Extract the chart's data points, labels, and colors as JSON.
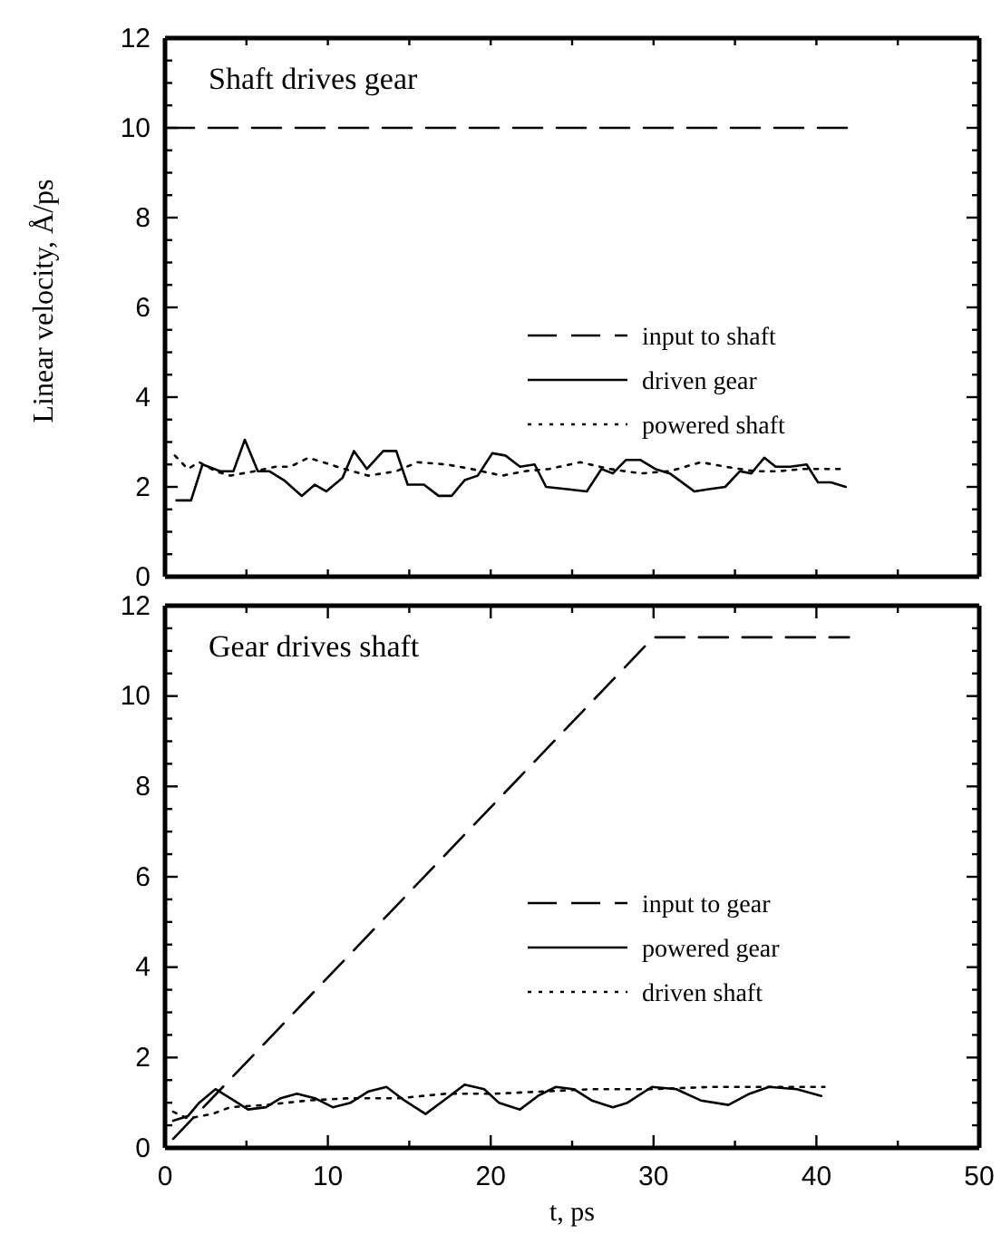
{
  "chart_data": [
    {
      "type": "line",
      "title": "Shaft drives gear",
      "ylabel": "Linear velocity, Å/ps",
      "xlim": [
        0,
        50
      ],
      "ylim": [
        0,
        12
      ],
      "xticks": [
        {
          "value": 0,
          "label": null
        },
        {
          "value": 5,
          "label": null
        },
        {
          "value": 10,
          "label": null
        },
        {
          "value": 15,
          "label": null
        },
        {
          "value": 20,
          "label": null
        },
        {
          "value": 25,
          "label": null
        },
        {
          "value": 30,
          "label": null
        },
        {
          "value": 35,
          "label": null
        },
        {
          "value": 40,
          "label": null
        },
        {
          "value": 45,
          "label": null
        },
        {
          "value": 50,
          "label": null
        }
      ],
      "yticks": [
        0,
        {
          "value": 0.5,
          "label": null
        },
        {
          "value": 1,
          "label": null
        },
        {
          "value": 1.5,
          "label": null
        },
        2,
        {
          "value": 2.5,
          "label": null
        },
        {
          "value": 3,
          "label": null
        },
        {
          "value": 3.5,
          "label": null
        },
        4,
        {
          "value": 4.5,
          "label": null
        },
        {
          "value": 5,
          "label": null
        },
        {
          "value": 5.5,
          "label": null
        },
        6,
        {
          "value": 6.5,
          "label": null
        },
        {
          "value": 7,
          "label": null
        },
        {
          "value": 7.5,
          "label": null
        },
        8,
        {
          "value": 8.5,
          "label": null
        },
        {
          "value": 9,
          "label": null
        },
        {
          "value": 9.5,
          "label": null
        },
        10,
        {
          "value": 10.5,
          "label": null
        },
        {
          "value": 11,
          "label": null
        },
        {
          "value": 11.5,
          "label": null
        },
        12
      ],
      "tick_labels": "y",
      "legend": "right",
      "grid": false,
      "marker": "none",
      "series": [
        {
          "name": "input to shaft",
          "color": "#000000",
          "line_style": "dashed",
          "x": [
            0,
            42
          ],
          "values": [
            10,
            10
          ]
        },
        {
          "name": "driven gear",
          "color": "#000000",
          "line_style": "solid",
          "x": [
            0.7,
            1.6,
            2.3,
            3.4,
            4.2,
            4.9,
            5.7,
            6.4,
            7.3,
            8.4,
            9.2,
            9.9,
            10.9,
            11.6,
            12.4,
            13.4,
            14.2,
            14.9,
            15.9,
            16.8,
            17.6,
            18.4,
            19.2,
            20.1,
            20.9,
            21.8,
            22.7,
            23.4,
            24.7,
            25.9,
            26.8,
            27.5,
            28.3,
            29.2,
            30.1,
            31,
            32.5,
            33.4,
            34.4,
            35.3,
            36,
            36.8,
            37.5,
            38.4,
            39.4,
            40.1,
            40.9,
            41.8
          ],
          "values": [
            1.7,
            1.7,
            2.5,
            2.35,
            2.35,
            3.05,
            2.35,
            2.35,
            2.15,
            1.8,
            2.05,
            1.9,
            2.2,
            2.8,
            2.4,
            2.8,
            2.8,
            2.05,
            2.05,
            1.8,
            1.8,
            2.15,
            2.25,
            2.75,
            2.7,
            2.45,
            2.5,
            2,
            1.95,
            1.9,
            2.4,
            2.3,
            2.6,
            2.6,
            2.4,
            2.3,
            1.9,
            1.95,
            2,
            2.35,
            2.3,
            2.65,
            2.45,
            2.45,
            2.5,
            2.1,
            2.1,
            2
          ]
        },
        {
          "name": "powered shaft",
          "color": "#000000",
          "line_style": "dotted",
          "x": [
            0.6,
            1.4,
            2.1,
            3.1,
            4,
            5.5,
            6.8,
            7.7,
            8.8,
            9.7,
            11,
            12.5,
            14.2,
            15.5,
            17.3,
            18.8,
            20.7,
            22.1,
            23.6,
            25.5,
            27.3,
            29.2,
            31,
            32.9,
            34.4,
            36.2,
            37.7,
            39.2,
            41.8
          ],
          "values": [
            2.7,
            2.4,
            2.55,
            2.35,
            2.25,
            2.35,
            2.45,
            2.45,
            2.65,
            2.55,
            2.4,
            2.25,
            2.35,
            2.55,
            2.5,
            2.4,
            2.25,
            2.35,
            2.4,
            2.55,
            2.4,
            2.3,
            2.35,
            2.55,
            2.45,
            2.35,
            2.35,
            2.4,
            2.4
          ]
        }
      ]
    },
    {
      "type": "line",
      "title": "Gear drives shaft",
      "xlabel": "t, ps",
      "xlim": [
        0,
        50
      ],
      "ylim": [
        0,
        12
      ],
      "xticks": [
        0,
        {
          "value": 5,
          "label": null
        },
        10,
        {
          "value": 15,
          "label": null
        },
        20,
        {
          "value": 25,
          "label": null
        },
        30,
        {
          "value": 35,
          "label": null
        },
        40,
        {
          "value": 45,
          "label": null
        },
        50
      ],
      "yticks": [
        0,
        {
          "value": 0.5,
          "label": null
        },
        {
          "value": 1,
          "label": null
        },
        {
          "value": 1.5,
          "label": null
        },
        2,
        {
          "value": 2.5,
          "label": null
        },
        {
          "value": 3,
          "label": null
        },
        {
          "value": 3.5,
          "label": null
        },
        4,
        {
          "value": 4.5,
          "label": null
        },
        {
          "value": 5,
          "label": null
        },
        {
          "value": 5.5,
          "label": null
        },
        6,
        {
          "value": 6.5,
          "label": null
        },
        {
          "value": 7,
          "label": null
        },
        {
          "value": 7.5,
          "label": null
        },
        8,
        {
          "value": 8.5,
          "label": null
        },
        {
          "value": 9,
          "label": null
        },
        {
          "value": 9.5,
          "label": null
        },
        10,
        {
          "value": 10.5,
          "label": null
        },
        {
          "value": 11,
          "label": null
        },
        {
          "value": 11.5,
          "label": null
        },
        12
      ],
      "legend": "right",
      "grid": false,
      "marker": "none",
      "series": [
        {
          "name": "input to gear",
          "color": "#000000",
          "line_style": "dashed",
          "x": [
            0.5,
            30,
            42
          ],
          "values": [
            0.2,
            11.3,
            11.3
          ]
        },
        {
          "name": "powered gear",
          "color": "#000000",
          "line_style": "solid",
          "x": [
            0.5,
            1.4,
            2.1,
            3.1,
            4,
            5.1,
            6.2,
            7.1,
            8.1,
            9.2,
            10.3,
            11.4,
            12.5,
            13.6,
            14.7,
            16,
            17.3,
            18.4,
            19.6,
            20.5,
            21.8,
            22.9,
            24,
            25.1,
            26.2,
            27.5,
            28.4,
            29.9,
            31.4,
            32.9,
            34.6,
            35.9,
            37.1,
            38.8,
            40.3
          ],
          "values": [
            0.6,
            0.7,
            1,
            1.3,
            1.1,
            0.85,
            0.9,
            1.1,
            1.2,
            1.1,
            0.9,
            1,
            1.25,
            1.35,
            1.05,
            0.75,
            1.1,
            1.4,
            1.3,
            1,
            0.85,
            1.15,
            1.35,
            1.3,
            1.05,
            0.9,
            1,
            1.35,
            1.3,
            1.05,
            0.95,
            1.2,
            1.35,
            1.3,
            1.15
          ]
        },
        {
          "name": "driven shaft",
          "color": "#000000",
          "line_style": "dotted",
          "x": [
            0.5,
            1.4,
            2.9,
            4,
            6.2,
            8.8,
            11.4,
            14.4,
            17.3,
            20.3,
            23.3,
            26.2,
            29.9,
            33.6,
            37.3,
            40.5
          ],
          "values": [
            0.8,
            0.65,
            0.75,
            0.9,
            0.95,
            1.05,
            1.1,
            1.1,
            1.2,
            1.2,
            1.25,
            1.3,
            1.3,
            1.35,
            1.35,
            1.35
          ]
        }
      ]
    }
  ]
}
